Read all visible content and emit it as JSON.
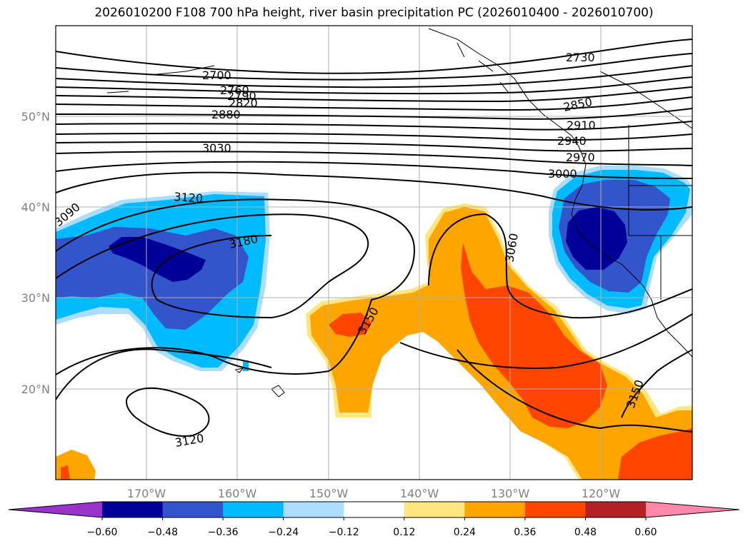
{
  "chart_data": {
    "type": "contour-map",
    "title": "2026010200 F108 700 hPa height, river basin precipitation PC (2026010400 - 2026010700)",
    "lat_labels": [
      "50°N",
      "40°N",
      "30°N",
      "20°N"
    ],
    "lat_values": [
      50,
      40,
      30,
      20
    ],
    "lon_labels": [
      "170°W",
      "160°W",
      "150°W",
      "140°W",
      "130°W",
      "120°W"
    ],
    "lon_values": [
      -170,
      -160,
      -150,
      -140,
      -130,
      -120
    ],
    "lon_range": [
      -180,
      -110
    ],
    "lat_range": [
      10,
      60
    ],
    "grid": true,
    "height_contour_labels": [
      "2700",
      "2730",
      "2760",
      "2790",
      "2820",
      "2850",
      "2880",
      "2910",
      "2940",
      "2970",
      "3000",
      "3030",
      "3060",
      "3090",
      "3120",
      "3120",
      "3150",
      "3150",
      "3150",
      "3180"
    ],
    "colorbar": {
      "ticks": [
        "−0.60",
        "−0.48",
        "−0.36",
        "−0.24",
        "−0.12",
        "0.12",
        "0.24",
        "0.36",
        "0.48",
        "0.60"
      ],
      "colors": [
        "#9933cc",
        "#000099",
        "#3355cc",
        "#00bbff",
        "#aaddff",
        "#ffffff",
        "#ffe680",
        "#ffa500",
        "#ff4500",
        "#b22222",
        "#ff88aa"
      ],
      "extend": "both"
    }
  }
}
